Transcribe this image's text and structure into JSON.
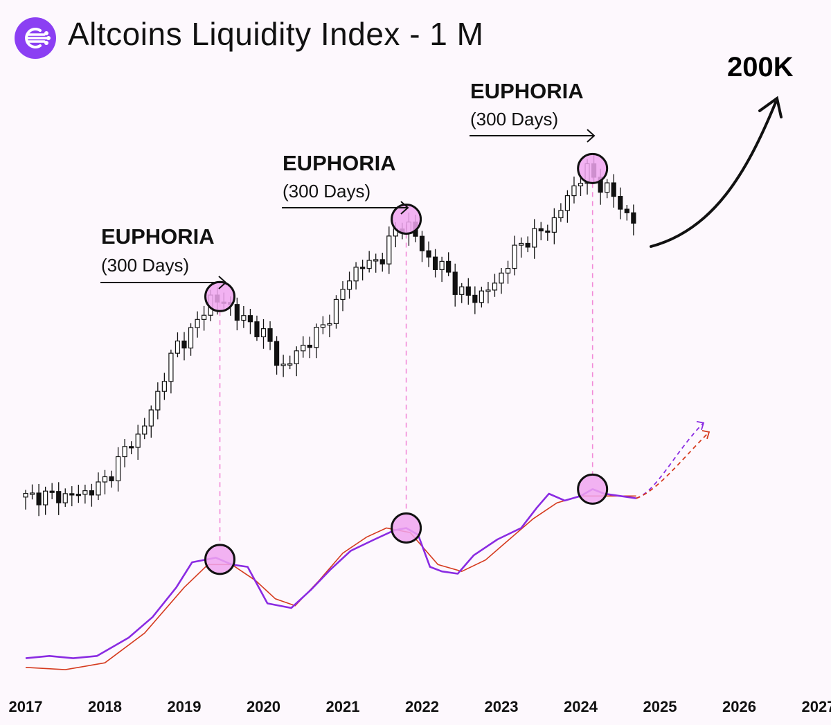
{
  "header": {
    "title": "Altcoins Liquidity Index - 1 M",
    "logo_icon": "circuit-logo-icon",
    "logo_color": "#8b3ff3"
  },
  "annotations": {
    "phases": [
      {
        "title": "EUPHORIA",
        "subtitle": "(300 Days)"
      },
      {
        "title": "EUPHORIA",
        "subtitle": "(300 Days)"
      },
      {
        "title": "EUPHORIA",
        "subtitle": "(300 Days)"
      }
    ],
    "target_label": "200K"
  },
  "colors": {
    "background": "#fdf8fd",
    "candle": "#111111",
    "highlight_fill": "#f0a6f0",
    "guide_line": "#f28ad8",
    "liquidity_line": "#8a2be2",
    "trend_line": "#d53a1e"
  },
  "chart_data": {
    "type": "line",
    "title": "Altcoins Liquidity Index - 1 M",
    "timeframe": "1 M",
    "x_tick_labels": [
      "2017",
      "2018",
      "2019",
      "2020",
      "2021",
      "2022",
      "2023",
      "2024",
      "2025",
      "2026",
      "2027"
    ],
    "xlim": [
      2017.0,
      2027.0
    ],
    "y_scale": "unlabeled",
    "grid": false,
    "legend": "none",
    "series": [
      {
        "kind": "price-candles",
        "close": [
          [
            2017.0,
            0.04
          ],
          [
            2017.25,
            0.045
          ],
          [
            2017.5,
            0.043
          ],
          [
            2017.75,
            0.055
          ],
          [
            2017.95,
            0.08
          ],
          [
            2018.1,
            0.13
          ],
          [
            2018.3,
            0.22
          ],
          [
            2018.45,
            0.25
          ],
          [
            2018.6,
            0.34
          ],
          [
            2018.75,
            0.45
          ],
          [
            2018.9,
            0.55
          ],
          [
            2019.05,
            0.58
          ],
          [
            2019.2,
            0.64
          ],
          [
            2019.35,
            0.72
          ],
          [
            2019.45,
            0.69
          ],
          [
            2019.6,
            0.68
          ],
          [
            2019.75,
            0.63
          ],
          [
            2019.9,
            0.61
          ],
          [
            2020.05,
            0.58
          ],
          [
            2020.2,
            0.47
          ],
          [
            2020.35,
            0.5
          ],
          [
            2020.55,
            0.56
          ],
          [
            2020.75,
            0.61
          ],
          [
            2020.9,
            0.68
          ],
          [
            2021.05,
            0.76
          ],
          [
            2021.2,
            0.82
          ],
          [
            2021.35,
            0.82
          ],
          [
            2021.5,
            0.85
          ],
          [
            2021.65,
            0.93
          ],
          [
            2021.75,
            0.95
          ],
          [
            2021.85,
            0.95
          ],
          [
            2022.0,
            0.87
          ],
          [
            2022.15,
            0.82
          ],
          [
            2022.3,
            0.81
          ],
          [
            2022.45,
            0.73
          ],
          [
            2022.6,
            0.71
          ],
          [
            2022.75,
            0.72
          ],
          [
            2022.9,
            0.75
          ],
          [
            2023.05,
            0.81
          ],
          [
            2023.2,
            0.88
          ],
          [
            2023.35,
            0.91
          ],
          [
            2023.5,
            0.93
          ],
          [
            2023.65,
            0.96
          ],
          [
            2023.8,
            1.03
          ],
          [
            2023.95,
            1.1
          ],
          [
            2024.1,
            1.14
          ],
          [
            2024.2,
            1.1
          ],
          [
            2024.35,
            1.07
          ],
          [
            2024.5,
            1.02
          ],
          [
            2024.6,
            0.98
          ],
          [
            2024.7,
            0.96
          ]
        ]
      },
      {
        "name": "",
        "kind": "liquidity-index",
        "color": "#8a2be2",
        "points": [
          [
            2017.0,
            0.18
          ],
          [
            2017.3,
            0.19
          ],
          [
            2017.6,
            0.18
          ],
          [
            2017.9,
            0.19
          ],
          [
            2018.3,
            0.27
          ],
          [
            2018.6,
            0.36
          ],
          [
            2018.9,
            0.49
          ],
          [
            2019.1,
            0.6
          ],
          [
            2019.4,
            0.62
          ],
          [
            2019.6,
            0.59
          ],
          [
            2019.8,
            0.58
          ],
          [
            2020.05,
            0.42
          ],
          [
            2020.35,
            0.4
          ],
          [
            2020.6,
            0.48
          ],
          [
            2020.85,
            0.57
          ],
          [
            2021.1,
            0.65
          ],
          [
            2021.4,
            0.7
          ],
          [
            2021.65,
            0.74
          ],
          [
            2021.8,
            0.75
          ],
          [
            2021.95,
            0.72
          ],
          [
            2022.1,
            0.58
          ],
          [
            2022.25,
            0.56
          ],
          [
            2022.45,
            0.55
          ],
          [
            2022.65,
            0.63
          ],
          [
            2022.95,
            0.7
          ],
          [
            2023.25,
            0.75
          ],
          [
            2023.45,
            0.84
          ],
          [
            2023.6,
            0.9
          ],
          [
            2023.8,
            0.87
          ],
          [
            2024.0,
            0.89
          ],
          [
            2024.15,
            0.92
          ],
          [
            2024.3,
            0.9
          ],
          [
            2024.5,
            0.89
          ],
          [
            2024.7,
            0.88
          ]
        ]
      },
      {
        "name": "",
        "kind": "trend",
        "color": "#d53a1e",
        "points": [
          [
            2017.0,
            0.14
          ],
          [
            2017.5,
            0.13
          ],
          [
            2018.0,
            0.16
          ],
          [
            2018.5,
            0.29
          ],
          [
            2019.0,
            0.49
          ],
          [
            2019.3,
            0.59
          ],
          [
            2019.6,
            0.59
          ],
          [
            2019.9,
            0.52
          ],
          [
            2020.15,
            0.44
          ],
          [
            2020.4,
            0.41
          ],
          [
            2020.7,
            0.52
          ],
          [
            2021.0,
            0.64
          ],
          [
            2021.3,
            0.71
          ],
          [
            2021.55,
            0.75
          ],
          [
            2021.85,
            0.73
          ],
          [
            2022.2,
            0.59
          ],
          [
            2022.5,
            0.56
          ],
          [
            2022.8,
            0.61
          ],
          [
            2023.1,
            0.7
          ],
          [
            2023.4,
            0.79
          ],
          [
            2023.7,
            0.86
          ],
          [
            2024.0,
            0.89
          ],
          [
            2024.3,
            0.89
          ],
          [
            2024.7,
            0.89
          ]
        ]
      }
    ],
    "euphoria_peaks": [
      2019.45,
      2021.8,
      2024.15
    ],
    "projection": {
      "label": "200K",
      "direction": "up",
      "style": "dashed"
    }
  }
}
